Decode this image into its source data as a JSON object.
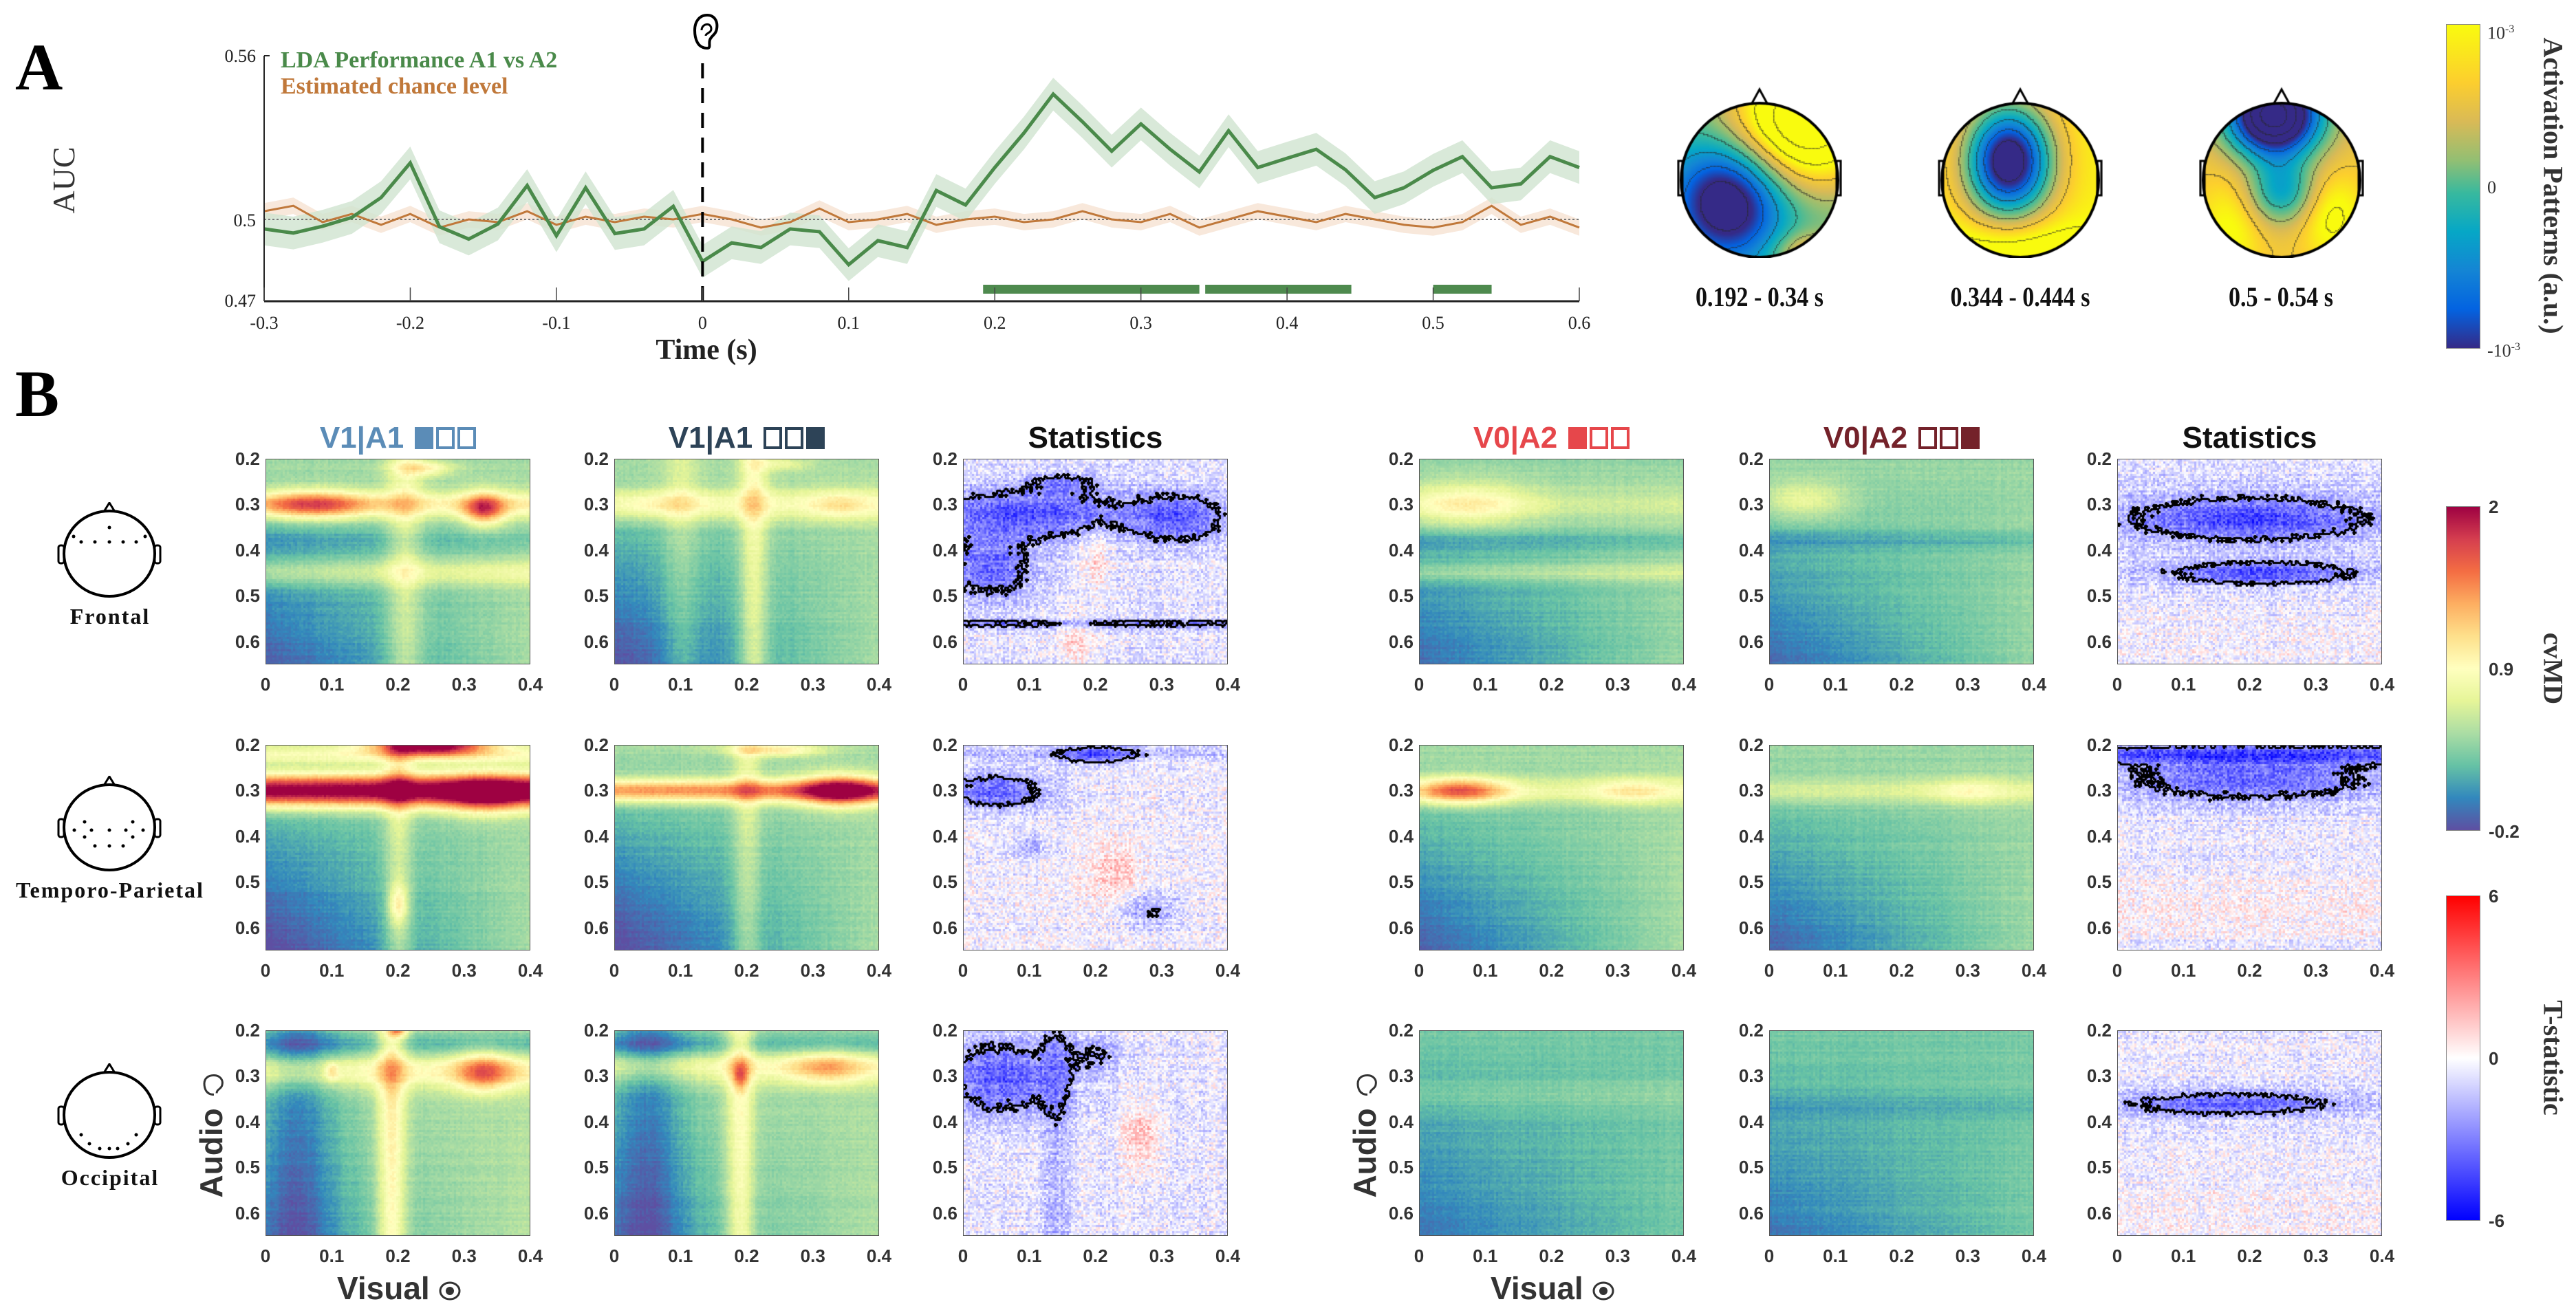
{
  "panel_labels": {
    "a": "A",
    "b": "B"
  },
  "chart_data": [
    {
      "type": "line",
      "title": "",
      "xlabel": "Time (s)",
      "ylabel": "AUC",
      "xlim": [
        -0.3,
        0.6
      ],
      "ylim": [
        0.47,
        0.56
      ],
      "xticks": [
        "-0.3",
        "-0.2",
        "-0.1",
        "0",
        "0.1",
        "0.2",
        "0.3",
        "0.4",
        "0.5",
        "0.6"
      ],
      "yticks": [
        "0.47",
        "0.5",
        "0.56"
      ],
      "x": [
        -0.3,
        -0.28,
        -0.26,
        -0.24,
        -0.22,
        -0.2,
        -0.18,
        -0.16,
        -0.14,
        -0.12,
        -0.1,
        -0.08,
        -0.06,
        -0.04,
        -0.02,
        0,
        0.02,
        0.04,
        0.06,
        0.08,
        0.1,
        0.12,
        0.14,
        0.16,
        0.18,
        0.2,
        0.22,
        0.24,
        0.26,
        0.28,
        0.3,
        0.32,
        0.34,
        0.36,
        0.38,
        0.4,
        0.42,
        0.44,
        0.46,
        0.48,
        0.5,
        0.52,
        0.54,
        0.56,
        0.58,
        0.6
      ],
      "series": [
        {
          "name": "LDA Performance A1 vs A2",
          "color": "#4a8a4a",
          "band_color": "#cfe3cf",
          "sem": 0.006,
          "values": [
            0.4965,
            0.495,
            0.4975,
            0.5007,
            0.508,
            0.5207,
            0.4973,
            0.4928,
            0.4983,
            0.5124,
            0.494,
            0.5116,
            0.4948,
            0.4965,
            0.5048,
            0.4846,
            0.4914,
            0.4897,
            0.4965,
            0.4955,
            0.4834,
            0.4922,
            0.4897,
            0.5106,
            0.5053,
            0.519,
            0.5317,
            0.5459,
            0.5358,
            0.525,
            0.535,
            0.5257,
            0.5174,
            0.5325,
            0.519,
            0.5224,
            0.5257,
            0.5182,
            0.508,
            0.5116,
            0.518,
            0.523,
            0.5116,
            0.513,
            0.523,
            0.519
          ]
        },
        {
          "name": "Estimated chance level",
          "color": "#c0783a",
          "band_color": "#f6e2d2",
          "sem": 0.003,
          "values": [
            0.503,
            0.505,
            0.499,
            0.502,
            0.498,
            0.502,
            0.497,
            0.5,
            0.499,
            0.503,
            0.498,
            0.501,
            0.499,
            0.501,
            0.5,
            0.502,
            0.5,
            0.497,
            0.499,
            0.504,
            0.499,
            0.5,
            0.502,
            0.498,
            0.5,
            0.501,
            0.499,
            0.5,
            0.503,
            0.5,
            0.499,
            0.502,
            0.497,
            0.5,
            0.503,
            0.501,
            0.499,
            0.502,
            0.5,
            0.498,
            0.497,
            0.499,
            0.505,
            0.498,
            0.501,
            0.497
          ]
        }
      ],
      "reference_line": 0.5,
      "event_marker": {
        "x": 0,
        "icon": "ear-icon"
      },
      "significant_intervals": [
        [
          0.192,
          0.34
        ],
        [
          0.344,
          0.444
        ],
        [
          0.5,
          0.54
        ]
      ],
      "significance_color": "#4e8a4e"
    },
    {
      "type": "topomap",
      "colorbar": {
        "title": "Activation Patterns (a.u.)",
        "top": {
          "base": "10",
          "exp": "-3"
        },
        "mid": "0",
        "bottom": {
          "base": "-10",
          "exp": "-3"
        }
      },
      "maps": [
        {
          "label": "0.192 - 0.34 s"
        },
        {
          "label": "0.344 - 0.444 s"
        },
        {
          "label": "0.5 - 0.54 s"
        }
      ]
    },
    {
      "type": "heatmap",
      "xlabel": "Visual",
      "ylabel": "Audio",
      "xlim": [
        0,
        0.4
      ],
      "ylim": [
        0.2,
        0.65
      ],
      "xticks": [
        "0",
        "0.1",
        "0.2",
        "0.3",
        "0.4"
      ],
      "yticks": [
        "0.2",
        "0.3",
        "0.4",
        "0.5",
        "0.6"
      ],
      "columns": [
        {
          "title": "V1|A1",
          "color": "#5b8cb7",
          "boxes": [
            1,
            0,
            0
          ],
          "kind": "cvMD"
        },
        {
          "title": "V1|A1",
          "color": "#2d4357",
          "boxes": [
            0,
            0,
            1
          ],
          "kind": "cvMD"
        },
        {
          "title": "Statistics",
          "color": "#111111",
          "boxes": [],
          "kind": "T"
        },
        {
          "title": "V0|A2",
          "color": "#e6474b",
          "boxes": [
            1,
            0,
            0
          ],
          "kind": "cvMD"
        },
        {
          "title": "V0|A2",
          "color": "#74222a",
          "boxes": [
            0,
            0,
            1
          ],
          "kind": "cvMD"
        },
        {
          "title": "Statistics",
          "color": "#111111",
          "boxes": [],
          "kind": "T"
        }
      ],
      "rows": [
        {
          "label": "Frontal"
        },
        {
          "label": "Temporo-Parietal"
        },
        {
          "label": "Occipital"
        }
      ],
      "colorbars": [
        {
          "title": "cvMD",
          "range": [
            -0.2,
            2
          ],
          "ticks": [
            "2",
            "0.9",
            "-0.2"
          ]
        },
        {
          "title": "T-statistic",
          "range": [
            -6,
            6
          ],
          "ticks": [
            "6",
            "0",
            "-6"
          ]
        }
      ],
      "contour_threshold": -2.3,
      "panels": [
        [
          {
            "base": 0.45,
            "c": [
              [
                "h",
                0.3,
                0.02,
                0.55
              ],
              [
                "b",
                0.07,
                0.3,
                0.06,
                0.022,
                0.9
              ],
              [
                "b",
                0.33,
                0.31,
                0.022,
                0.025,
                1.0
              ],
              [
                "b",
                0.24,
                0.22,
                0.03,
                0.012,
                0.5
              ],
              [
                "h",
                0.45,
                0.02,
                0.35
              ],
              [
                "v",
                0.21,
                0.02,
                0.35
              ],
              [
                "h",
                0.38,
                0.02,
                -0.15
              ],
              [
                "g",
                -0.6
              ]
            ]
          },
          {
            "base": 0.45,
            "c": [
              [
                "h",
                0.3,
                0.025,
                0.45
              ],
              [
                "b",
                0.07,
                0.3,
                0.05,
                0.02,
                0.2
              ],
              [
                "b",
                0.34,
                0.3,
                0.03,
                0.02,
                0.25
              ],
              [
                "v",
                0.21,
                0.015,
                0.45
              ],
              [
                "v",
                0.1,
                0.02,
                0.2
              ],
              [
                "b",
                0.25,
                0.21,
                0.03,
                0.01,
                0.3
              ],
              [
                "g",
                -0.65
              ]
            ]
          },
          {
            "base": -0.5,
            "c": [
              [
                "b",
                0.1,
                0.32,
                0.12,
                0.04,
                -3.5
              ],
              [
                "b",
                0.33,
                0.33,
                0.05,
                0.04,
                -3
              ],
              [
                "b",
                0.04,
                0.44,
                0.05,
                0.05,
                -3
              ],
              [
                "b",
                0.2,
                0.42,
                0.015,
                0.05,
                1.5
              ],
              [
                "b",
                0.17,
                0.6,
                0.02,
                0.04,
                1.5
              ],
              [
                "h",
                0.56,
                0.008,
                -2
              ],
              [
                "b",
                0.15,
                0.25,
                0.04,
                0.015,
                -2
              ]
            ]
          },
          {
            "base": 0.4,
            "c": [
              [
                "b",
                0.07,
                0.3,
                0.07,
                0.035,
                0.5
              ],
              [
                "h",
                0.3,
                0.03,
                0.2
              ],
              [
                "h",
                0.45,
                0.015,
                0.25
              ],
              [
                "h",
                0.38,
                0.015,
                -0.15
              ],
              [
                "g",
                -0.5
              ]
            ]
          },
          {
            "base": 0.4,
            "c": [
              [
                "b",
                0.05,
                0.29,
                0.05,
                0.03,
                0.4
              ],
              [
                "h",
                0.38,
                0.015,
                -0.15
              ],
              [
                "g",
                -0.5
              ]
            ]
          },
          {
            "base": -0.8,
            "c": [
              [
                "b",
                0.2,
                0.33,
                0.13,
                0.035,
                -3.5
              ],
              [
                "b",
                0.22,
                0.45,
                0.1,
                0.018,
                -3.5
              ],
              [
                "h",
                0.6,
                0.06,
                0.7
              ]
            ]
          }
        ],
        [
          {
            "base": 0.45,
            "c": [
              [
                "h",
                0.3,
                0.025,
                1.8
              ],
              [
                "b",
                0.25,
                0.2,
                0.06,
                0.015,
                1.6
              ],
              [
                "b",
                0.33,
                0.31,
                0.04,
                0.03,
                0.6
              ],
              [
                "h",
                0.22,
                0.015,
                0.4
              ],
              [
                "v",
                0.2,
                0.015,
                0.35
              ],
              [
                "b",
                0.2,
                0.55,
                0.01,
                0.03,
                0.5
              ],
              [
                "g",
                -0.7
              ]
            ]
          },
          {
            "base": 0.45,
            "c": [
              [
                "h",
                0.3,
                0.018,
                1.1
              ],
              [
                "b",
                0.34,
                0.3,
                0.04,
                0.025,
                1.0
              ],
              [
                "b",
                0.24,
                0.21,
                0.05,
                0.01,
                0.6
              ],
              [
                "v",
                0.2,
                0.015,
                0.3
              ],
              [
                "g",
                -0.7
              ]
            ]
          },
          {
            "base": -0.3,
            "c": [
              [
                "b",
                0.05,
                0.3,
                0.06,
                0.03,
                -3.2
              ],
              [
                "b",
                0.2,
                0.22,
                0.04,
                0.015,
                -3
              ],
              [
                "h",
                0.22,
                0.01,
                -1.2
              ],
              [
                "b",
                0.23,
                0.48,
                0.03,
                0.05,
                1.6
              ],
              [
                "b",
                0.28,
                0.56,
                0.03,
                0.03,
                -2
              ],
              [
                "b",
                0.1,
                0.42,
                0.02,
                0.02,
                -1.5
              ]
            ]
          },
          {
            "base": 0.45,
            "c": [
              [
                "b",
                0.06,
                0.3,
                0.05,
                0.02,
                1.0
              ],
              [
                "h",
                0.3,
                0.02,
                0.35
              ],
              [
                "b",
                0.32,
                0.3,
                0.04,
                0.02,
                0.3
              ],
              [
                "g",
                -0.6
              ]
            ]
          },
          {
            "base": 0.42,
            "c": [
              [
                "h",
                0.3,
                0.02,
                0.3
              ],
              [
                "b",
                0.3,
                0.3,
                0.04,
                0.02,
                0.25
              ],
              [
                "g",
                -0.55
              ]
            ]
          },
          {
            "base": -0.5,
            "c": [
              [
                "h",
                0.22,
                0.012,
                -3
              ],
              [
                "b",
                0.2,
                0.27,
                0.15,
                0.04,
                -3.2
              ],
              [
                "h",
                0.55,
                0.05,
                0.8
              ]
            ]
          }
        ],
        [
          {
            "base": 0.5,
            "c": [
              [
                "h",
                0.29,
                0.025,
                0.45
              ],
              [
                "b",
                0.33,
                0.29,
                0.03,
                0.03,
                0.8
              ],
              [
                "v",
                0.19,
                0.015,
                0.6
              ],
              [
                "v",
                0.05,
                0.04,
                -0.35
              ],
              [
                "b",
                0.2,
                0.2,
                0.01,
                0.01,
                0.6
              ],
              [
                "b",
                0.1,
                0.29,
                0.007,
                0.015,
                0.4
              ],
              [
                "h",
                0.23,
                0.02,
                -0.3
              ],
              [
                "g",
                -0.4
              ]
            ]
          },
          {
            "base": 0.48,
            "c": [
              [
                "h",
                0.28,
                0.025,
                0.4
              ],
              [
                "b",
                0.32,
                0.28,
                0.04,
                0.025,
                0.55
              ],
              [
                "v",
                0.19,
                0.015,
                0.5
              ],
              [
                "v",
                0.05,
                0.04,
                -0.35
              ],
              [
                "b",
                0.19,
                0.3,
                0.008,
                0.02,
                0.5
              ],
              [
                "h",
                0.23,
                0.02,
                -0.3
              ],
              [
                "g",
                -0.4
              ]
            ]
          },
          {
            "base": -0.5,
            "c": [
              [
                "b",
                0.06,
                0.3,
                0.07,
                0.06,
                -3.2
              ],
              [
                "b",
                0.27,
                0.43,
                0.02,
                0.05,
                2
              ],
              [
                "v",
                0.14,
                0.015,
                -1.2
              ],
              [
                "b",
                0.2,
                0.25,
                0.03,
                0.03,
                -1.5
              ]
            ]
          },
          {
            "base": 0.3,
            "c": [
              [
                "h",
                0.34,
                0.02,
                0.1
              ],
              [
                "g",
                -0.35
              ]
            ]
          },
          {
            "base": 0.3,
            "c": [
              [
                "h",
                0.37,
                0.02,
                -0.1
              ],
              [
                "g",
                -0.35
              ]
            ]
          },
          {
            "base": -0.4,
            "c": [
              [
                "b",
                0.17,
                0.36,
                0.13,
                0.02,
                -3.3
              ],
              [
                "h",
                0.6,
                0.04,
                0.5
              ]
            ]
          }
        ]
      ]
    }
  ]
}
